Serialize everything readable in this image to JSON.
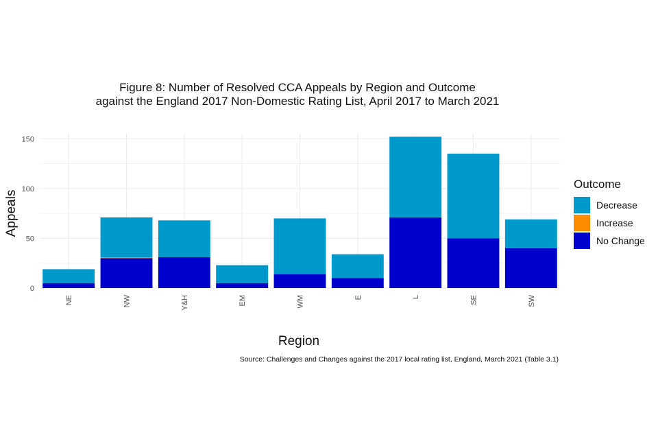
{
  "chart_data": {
    "type": "bar",
    "stacked": true,
    "title_lines": [
      "Figure 8: Number of Resolved CCA Appeals by Region and Outcome",
      "against the England 2017 Non-Domestic Rating List, April 2017 to March 2021"
    ],
    "xlabel": "Region",
    "ylabel": "Appeals",
    "categories": [
      "NE",
      "NW",
      "Y&H",
      "EM",
      "WM",
      "E",
      "L",
      "SE",
      "SW"
    ],
    "y_ticks": [
      0,
      50,
      100,
      150
    ],
    "ylim": [
      0,
      155
    ],
    "grid": true,
    "legend_title": "Outcome",
    "legend_position": "right",
    "series": [
      {
        "name": "No Change",
        "color": "#0000cd",
        "values": [
          5,
          30,
          31,
          5,
          14,
          10,
          71,
          50,
          40
        ]
      },
      {
        "name": "Increase",
        "color": "#ff8c00",
        "values": [
          0,
          1,
          0,
          0,
          0,
          0,
          0,
          0,
          0
        ]
      },
      {
        "name": "Decrease",
        "color": "#0099cc",
        "values": [
          14,
          40,
          37,
          18,
          56,
          24,
          81,
          85,
          29
        ]
      }
    ],
    "legend_order": [
      "Decrease",
      "Increase",
      "No Change"
    ],
    "source": "Source: Challenges and Changes against the 2017 local rating list, England, March 2021 (Table 3.1)"
  }
}
